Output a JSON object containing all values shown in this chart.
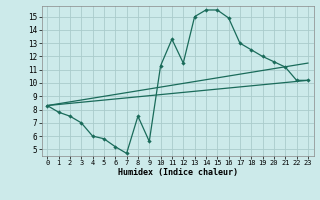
{
  "background_color": "#cceaea",
  "grid_color": "#aacccc",
  "line_color": "#1a6b5a",
  "xlabel": "Humidex (Indice chaleur)",
  "xlim": [
    -0.5,
    23.5
  ],
  "ylim": [
    4.5,
    15.8
  ],
  "yticks": [
    5,
    6,
    7,
    8,
    9,
    10,
    11,
    12,
    13,
    14,
    15
  ],
  "xticks": [
    0,
    1,
    2,
    3,
    4,
    5,
    6,
    7,
    8,
    9,
    10,
    11,
    12,
    13,
    14,
    15,
    16,
    17,
    18,
    19,
    20,
    21,
    22,
    23
  ],
  "curve1_x": [
    0,
    1,
    2,
    3,
    4,
    5,
    6,
    7,
    8,
    9,
    10,
    11,
    12,
    13,
    14,
    15,
    16,
    17,
    18,
    19,
    20,
    21,
    22,
    23
  ],
  "curve1_y": [
    8.3,
    7.8,
    7.5,
    7.0,
    6.0,
    5.8,
    5.2,
    4.7,
    7.5,
    5.6,
    11.3,
    13.3,
    11.5,
    15.0,
    15.5,
    15.5,
    14.9,
    13.0,
    12.5,
    12.0,
    11.6,
    11.2,
    10.2,
    10.2
  ],
  "curve2_x": [
    0,
    23
  ],
  "curve2_y": [
    8.3,
    11.5
  ],
  "curve3_x": [
    0,
    23
  ],
  "curve3_y": [
    8.3,
    10.2
  ]
}
